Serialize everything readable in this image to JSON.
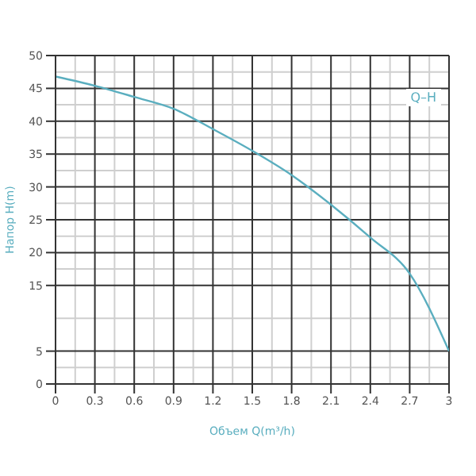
{
  "chart_data": {
    "type": "line",
    "xlabel": "Объем Q(m³/h)",
    "ylabel": "Напор H(m)",
    "x": [
      0,
      0.3,
      0.6,
      0.9,
      1.2,
      1.5,
      1.8,
      2.1,
      2.4,
      2.7,
      3
    ],
    "series": [
      {
        "color": "#5aaebf",
        "values": [
          46.8,
          45.4,
          43.7,
          41.9,
          38.8,
          35.5,
          31.8,
          27.3,
          22.3,
          16.8,
          5
        ]
      }
    ],
    "xlim": [
      0,
      3
    ],
    "xticks": [
      0,
      0.3,
      0.6,
      0.9,
      1.2,
      1.5,
      1.8,
      2.1,
      2.4,
      2.7,
      3
    ],
    "ylim": [
      0,
      50
    ],
    "yticks": [
      50,
      45,
      40,
      35,
      30,
      25,
      20,
      15,
      5,
      0
    ],
    "grid": true,
    "marker": "none",
    "line_style": "solid",
    "annotations": [
      "Q–H"
    ]
  }
}
